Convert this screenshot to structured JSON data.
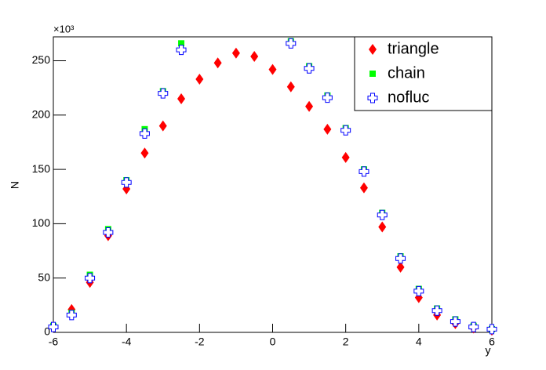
{
  "chart_data": {
    "type": "scatter",
    "x_label": "y",
    "y_label": "N",
    "y_multiplier": "×10³",
    "x": [
      -6,
      -5.5,
      -5,
      -4.5,
      -4,
      -3.5,
      -3,
      -2.5,
      -2,
      -1.5,
      -1,
      -0.5,
      0,
      0.5,
      1,
      1.5,
      2,
      2.5,
      3,
      3.5,
      4,
      4.5,
      5,
      5.5,
      6
    ],
    "series": [
      {
        "name": "triangle",
        "color": "#ff0000",
        "marker": "diamond",
        "values": [
          5,
          21,
          46,
          89,
          132,
          165,
          190,
          215,
          233,
          248,
          257,
          254,
          242,
          226,
          208,
          187,
          161,
          133,
          97,
          60,
          32,
          16,
          8,
          4,
          2
        ]
      },
      {
        "name": "chain",
        "color": "#00ff00",
        "marker": "square",
        "values": [
          6,
          18,
          53,
          95,
          140,
          187,
          222,
          266,
          null,
          null,
          null,
          null,
          null,
          268,
          245,
          218,
          188,
          150,
          110,
          70,
          40,
          22,
          12,
          6,
          3
        ]
      },
      {
        "name": "nofluc",
        "color": "#0000ff",
        "marker": "open-cross",
        "values": [
          5,
          16,
          50,
          92,
          138,
          183,
          220,
          260,
          null,
          null,
          null,
          null,
          null,
          266,
          243,
          216,
          186,
          148,
          108,
          68,
          38,
          20,
          10,
          5,
          3
        ]
      }
    ],
    "xlim": [
      -6,
      6
    ],
    "xticks": [
      -6,
      -4,
      -2,
      0,
      2,
      4,
      6
    ],
    "ylim": [
      0,
      272
    ],
    "yticks": [
      0,
      50,
      100,
      150,
      200,
      250
    ],
    "legend": "top-right"
  }
}
